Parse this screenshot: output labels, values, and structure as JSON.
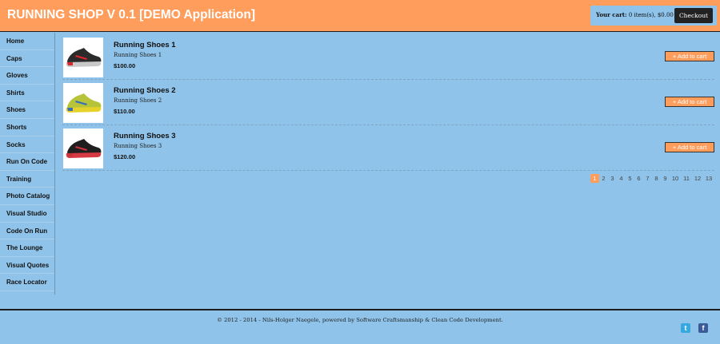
{
  "header": {
    "title": "RUNNING SHOP V 0.1 [DEMO Application]",
    "cart_label": "Your cart:",
    "cart_summary": "0 item(s), $0.00",
    "checkout_label": "Checkout"
  },
  "sidebar": {
    "items": [
      {
        "label": "Home"
      },
      {
        "label": "Caps"
      },
      {
        "label": "Gloves"
      },
      {
        "label": "Shirts"
      },
      {
        "label": "Shoes"
      },
      {
        "label": "Shorts"
      },
      {
        "label": "Socks"
      },
      {
        "label": "Run On Code"
      },
      {
        "label": "Training"
      },
      {
        "label": "Photo Catalog"
      },
      {
        "label": "Visual Studio"
      },
      {
        "label": "Code On Run"
      },
      {
        "label": "The Lounge"
      },
      {
        "label": "Visual Quotes"
      },
      {
        "label": "Race Locator"
      }
    ]
  },
  "products": [
    {
      "name": "Running Shoes 1",
      "description": "Running Shoes 1",
      "price": "$100.00",
      "button": "+ Add to cart",
      "colors": {
        "body": "#2b2b2b",
        "accent": "#d8262c",
        "sole": "#c9c9c9"
      }
    },
    {
      "name": "Running Shoes 2",
      "description": "Running Shoes 2",
      "price": "$110.00",
      "button": "+ Add to cart",
      "colors": {
        "body": "#b7c43a",
        "accent": "#3a6fb5",
        "sole": "#e6d22a"
      }
    },
    {
      "name": "Running Shoes 3",
      "description": "Running Shoes 3",
      "price": "$120.00",
      "button": "+ Add to cart",
      "colors": {
        "body": "#1f1f1f",
        "accent": "#c8323a",
        "sole": "#d53a44"
      }
    }
  ],
  "pagination": {
    "current": "1",
    "pages": [
      "1",
      "2",
      "3",
      "4",
      "5",
      "6",
      "7",
      "8",
      "9",
      "10",
      "11",
      "12",
      "13"
    ]
  },
  "footer": {
    "text": "© 2012 - 2014 - Nils-Holger Naegele, powered by Software Craftsmanship & Clean Code Development."
  },
  "social": {
    "twitter_glyph": "t",
    "facebook_glyph": "f"
  },
  "colors": {
    "accent": "#ff9d5c",
    "background": "#8fc3e9",
    "dark": "#222222"
  }
}
